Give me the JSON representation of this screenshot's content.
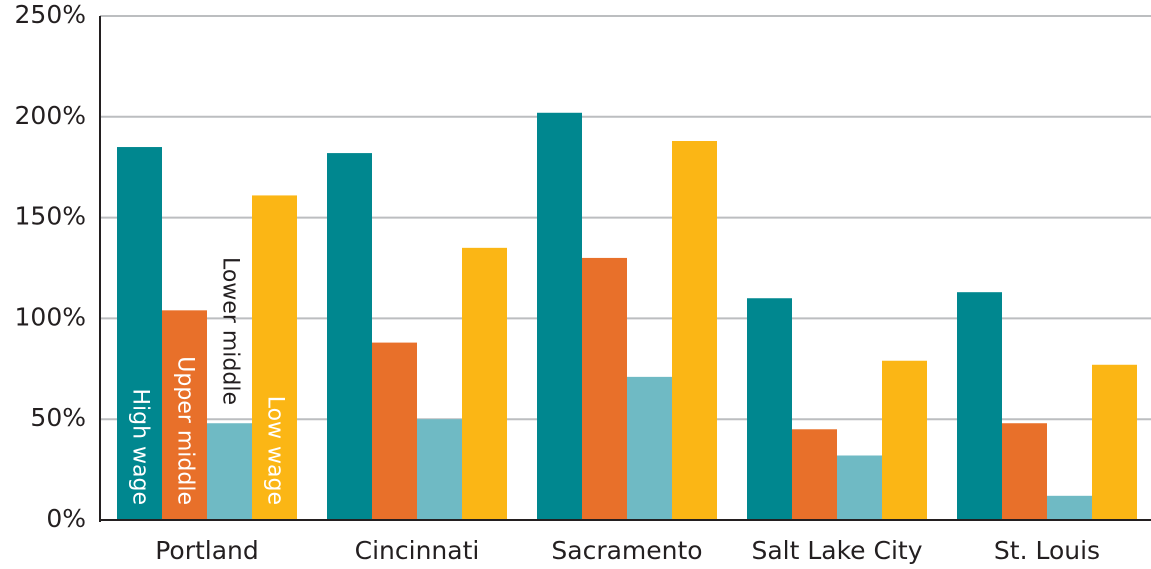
{
  "chart_data": {
    "type": "bar",
    "categories": [
      "Portland",
      "Cincinnati",
      "Sacramento",
      "Salt Lake City",
      "St. Louis"
    ],
    "series": [
      {
        "name": "High wage",
        "color": "#00878f",
        "values": [
          185,
          182,
          202,
          110,
          113
        ]
      },
      {
        "name": "Upper middle",
        "color": "#e8702a",
        "values": [
          104,
          88,
          130,
          45,
          48
        ]
      },
      {
        "name": "Lower middle",
        "color": "#6fbac4",
        "values": [
          48,
          50,
          71,
          32,
          12
        ]
      },
      {
        "name": "Low wage",
        "color": "#fbb615",
        "values": [
          161,
          135,
          188,
          79,
          77
        ]
      }
    ],
    "ylim": [
      0,
      250
    ],
    "yticks": [
      {
        "value": 0,
        "label": "0%"
      },
      {
        "value": 50,
        "label": "50%"
      },
      {
        "value": 100,
        "label": "100%"
      },
      {
        "value": 150,
        "label": "150%"
      },
      {
        "value": 200,
        "label": "200%"
      },
      {
        "value": 250,
        "label": "250%"
      }
    ],
    "grid": true
  }
}
